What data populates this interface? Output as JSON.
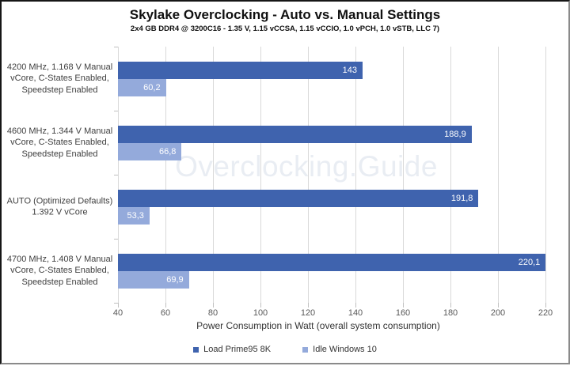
{
  "watermark": "Overclocking.Guide",
  "colors": {
    "load_bar": "#3F63AE",
    "idle_bar": "#94AADB",
    "gridline": "#D9D9D9",
    "tick": "#C0C0C0",
    "axis_text": "#595959",
    "category_text": "#404040",
    "value_label_text": "#FFFFFF",
    "watermark": "#E9EDF3"
  },
  "chart_data": {
    "type": "bar",
    "orientation": "horizontal",
    "title": "Skylake Overclocking - Auto vs. Manual Settings",
    "subtitle": "2x4 GB DDR4 @ 3200C16 - 1.35 V, 1.15 vCCSA, 1.15 vCCIO, 1.0 vPCH, 1.0 vSTB, LLC 7)",
    "xlabel": "Power Consumption in Watt (overall system consumption)",
    "xlim": [
      40,
      220
    ],
    "x_ticks": [
      40,
      60,
      80,
      100,
      120,
      140,
      160,
      180,
      200,
      220
    ],
    "grid": true,
    "legend_position": "bottom",
    "categories": [
      "4200 MHz, 1.168 V Manual\nvCore, C-States Enabled,\nSpeedstep Enabled",
      "4600 MHz, 1.344 V Manual\nvCore, C-States Enabled,\nSpeedstep Enabled",
      "AUTO (Optimized Defaults)\n1.392 V vCore",
      "4700 MHz, 1.408 V Manual\nvCore, C-States Enabled,\nSpeedstep Enabled"
    ],
    "series": [
      {
        "name": "Load Prime95 8K",
        "color": "#3F63AE",
        "values": [
          143,
          188.9,
          191.8,
          220.1
        ],
        "labels": [
          "143",
          "188,9",
          "191,8",
          "220,1"
        ]
      },
      {
        "name": "Idle Windows 10",
        "color": "#94AADB",
        "values": [
          60.2,
          66.8,
          53.3,
          69.9
        ],
        "labels": [
          "60,2",
          "66,8",
          "53,3",
          "69,9"
        ]
      }
    ]
  }
}
